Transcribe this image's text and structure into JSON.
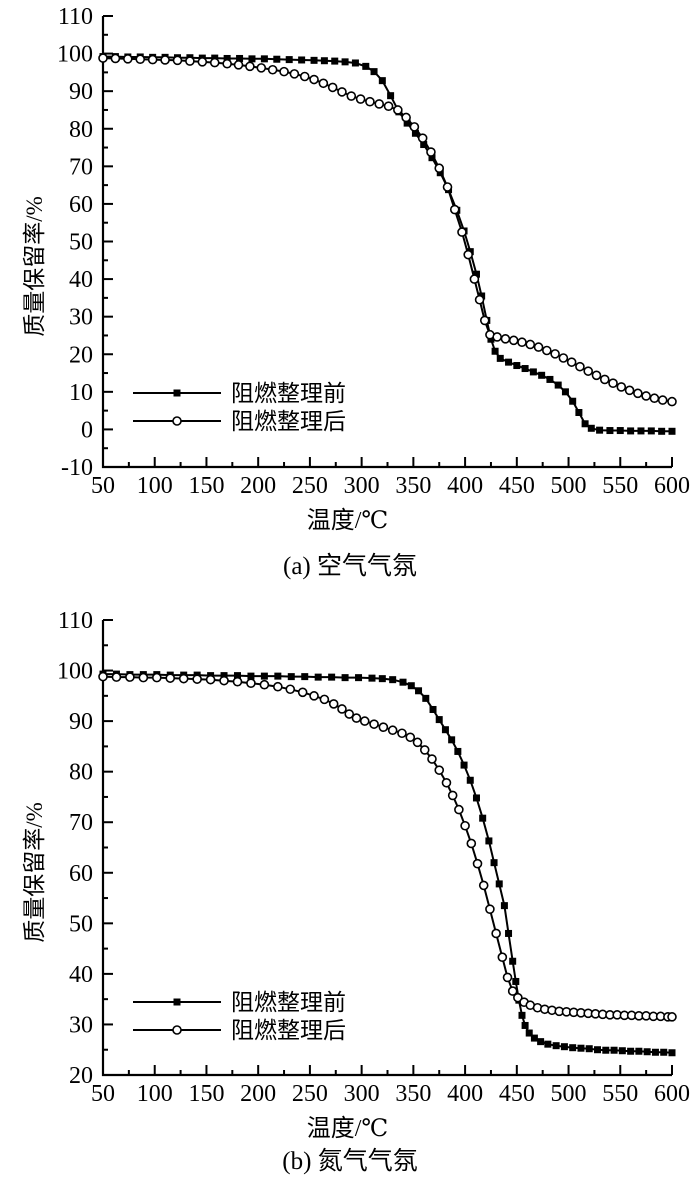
{
  "figure_background": "#ffffff",
  "line_color": "#000000",
  "chart_data": [
    {
      "type": "line",
      "atmosphere": "air",
      "caption": "(a) 空气气氛",
      "xlabel": "温度/℃",
      "ylabel": "质量保留率/%",
      "xlim": [
        50,
        600
      ],
      "ylim": [
        -10,
        110
      ],
      "xtick_major": 50,
      "xtick_minor": 25,
      "ytick_major": 10,
      "ytick_minor": 5,
      "grid": false,
      "legend_position": "lower-left-inside",
      "color": "#000000",
      "series": [
        {
          "name": "阻燃整理前",
          "marker": "filled-square",
          "x": [
            50,
            62,
            74,
            86,
            98,
            110,
            122,
            134,
            146,
            158,
            170,
            182,
            194,
            206,
            218,
            230,
            242,
            254,
            264,
            274,
            284,
            294,
            304,
            312,
            320,
            328,
            336,
            344,
            352,
            360,
            368,
            376,
            384,
            392,
            399,
            405,
            411,
            416,
            421,
            425,
            429,
            434,
            442,
            450,
            458,
            466,
            474,
            482,
            490,
            497,
            504,
            510,
            516,
            522,
            530,
            540,
            550,
            560,
            570,
            580,
            590,
            600
          ],
          "y": [
            99.2,
            99.2,
            99.1,
            99.1,
            99.0,
            99.0,
            98.9,
            98.9,
            98.8,
            98.8,
            98.7,
            98.7,
            98.6,
            98.6,
            98.5,
            98.4,
            98.3,
            98.2,
            98.1,
            98.0,
            97.8,
            97.5,
            96.6,
            95.2,
            92.8,
            88.8,
            84.5,
            81.5,
            78.8,
            75.8,
            72.3,
            68.3,
            63.8,
            58.3,
            52.8,
            47.3,
            41.3,
            35.5,
            29.0,
            24.0,
            20.8,
            18.9,
            17.9,
            17.0,
            16.2,
            15.3,
            14.4,
            13.3,
            11.8,
            10.0,
            7.5,
            4.5,
            1.5,
            0.3,
            -0.2,
            -0.3,
            -0.3,
            -0.4,
            -0.4,
            -0.4,
            -0.5,
            -0.5
          ]
        },
        {
          "name": "阻燃整理后",
          "marker": "open-circle",
          "x": [
            50,
            62,
            74,
            86,
            98,
            110,
            122,
            134,
            146,
            158,
            170,
            181,
            192,
            203,
            214,
            225,
            235,
            245,
            254,
            263,
            272,
            281,
            290,
            299,
            308,
            317,
            326,
            335,
            343,
            351,
            359,
            367,
            375,
            383,
            390,
            397,
            403,
            409,
            414,
            419,
            424,
            431,
            439,
            447,
            455,
            463,
            471,
            479,
            487,
            495,
            503,
            511,
            519,
            527,
            535,
            543,
            551,
            559,
            567,
            575,
            583,
            591,
            600
          ],
          "y": [
            98.8,
            98.7,
            98.6,
            98.5,
            98.4,
            98.3,
            98.2,
            98.0,
            97.8,
            97.6,
            97.3,
            97.0,
            96.6,
            96.2,
            95.7,
            95.2,
            94.6,
            93.9,
            93.1,
            92.1,
            91.0,
            89.8,
            88.7,
            87.9,
            87.2,
            86.6,
            86.0,
            85.0,
            83.0,
            80.5,
            77.5,
            73.8,
            69.5,
            64.5,
            58.5,
            52.5,
            46.5,
            40.0,
            34.5,
            29.0,
            25.2,
            24.6,
            24.1,
            23.7,
            23.2,
            22.6,
            21.9,
            21.0,
            20.1,
            19.0,
            17.9,
            16.7,
            15.5,
            14.4,
            13.3,
            12.3,
            11.3,
            10.4,
            9.6,
            8.9,
            8.3,
            7.8,
            7.4
          ]
        }
      ]
    },
    {
      "type": "line",
      "atmosphere": "nitrogen",
      "caption": "(b) 氮气气氛",
      "xlabel": "温度/℃",
      "ylabel": "质量保留率/%",
      "xlim": [
        50,
        600
      ],
      "ylim": [
        20,
        110
      ],
      "xtick_major": 50,
      "xtick_minor": 25,
      "ytick_major": 10,
      "ytick_minor": 5,
      "grid": false,
      "legend_position": "lower-left-inside",
      "color": "#000000",
      "series": [
        {
          "name": "阻燃整理前",
          "marker": "filled-square",
          "x": [
            50,
            63,
            76,
            89,
            102,
            115,
            128,
            141,
            154,
            167,
            180,
            193,
            206,
            219,
            232,
            245,
            258,
            271,
            284,
            297,
            310,
            320,
            330,
            340,
            348,
            355,
            362,
            369,
            375,
            381,
            387,
            393,
            399,
            405,
            411,
            417,
            423,
            428,
            433,
            438,
            442,
            446,
            449,
            452,
            455,
            458,
            462,
            467,
            473,
            480,
            488,
            496,
            504,
            512,
            520,
            528,
            536,
            544,
            552,
            560,
            568,
            576,
            584,
            592,
            600
          ],
          "y": [
            99.3,
            99.3,
            99.2,
            99.2,
            99.2,
            99.1,
            99.1,
            99.1,
            99.0,
            99.0,
            99.0,
            98.9,
            98.9,
            98.9,
            98.8,
            98.8,
            98.7,
            98.7,
            98.6,
            98.6,
            98.5,
            98.4,
            98.2,
            97.7,
            97.0,
            96.0,
            94.5,
            92.3,
            90.3,
            88.3,
            86.3,
            84.0,
            81.3,
            78.3,
            74.8,
            70.8,
            66.3,
            62.0,
            57.8,
            53.5,
            48.0,
            42.5,
            38.5,
            34.8,
            31.8,
            29.8,
            28.3,
            27.3,
            26.6,
            26.1,
            25.8,
            25.6,
            25.4,
            25.3,
            25.2,
            25.0,
            24.9,
            24.9,
            24.8,
            24.7,
            24.7,
            24.6,
            24.5,
            24.5,
            24.4
          ]
        },
        {
          "name": "阻燃整理后",
          "marker": "open-circle",
          "x": [
            50,
            63,
            76,
            89,
            102,
            115,
            128,
            141,
            154,
            167,
            180,
            193,
            206,
            219,
            231,
            243,
            254,
            264,
            273,
            281,
            288,
            295,
            303,
            312,
            321,
            330,
            339,
            347,
            354,
            361,
            368,
            375,
            382,
            388,
            394,
            400,
            406,
            412,
            418,
            424,
            430,
            436,
            441,
            446,
            451,
            457,
            463,
            470,
            477,
            484,
            491,
            498,
            505,
            512,
            519,
            526,
            533,
            540,
            547,
            554,
            561,
            568,
            575,
            582,
            589,
            596,
            600
          ],
          "y": [
            98.8,
            98.7,
            98.7,
            98.6,
            98.6,
            98.5,
            98.4,
            98.3,
            98.2,
            98.0,
            97.8,
            97.5,
            97.2,
            96.8,
            96.3,
            95.7,
            95.0,
            94.3,
            93.4,
            92.4,
            91.4,
            90.6,
            90.0,
            89.4,
            88.8,
            88.2,
            87.6,
            86.8,
            85.8,
            84.3,
            82.5,
            80.3,
            77.8,
            75.3,
            72.5,
            69.3,
            65.8,
            61.8,
            57.5,
            52.8,
            48.0,
            43.3,
            39.3,
            36.6,
            35.3,
            34.4,
            33.8,
            33.3,
            33.0,
            32.8,
            32.6,
            32.5,
            32.4,
            32.3,
            32.2,
            32.1,
            32.0,
            31.9,
            31.9,
            31.8,
            31.8,
            31.7,
            31.7,
            31.6,
            31.6,
            31.5,
            31.5
          ]
        }
      ]
    }
  ]
}
